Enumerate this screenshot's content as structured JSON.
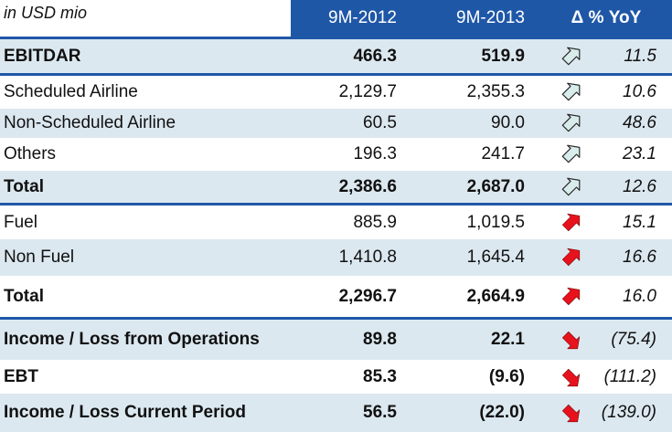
{
  "header": {
    "unit_label": "in USD mio",
    "col1": "9M-2012",
    "col2": "9M-2013",
    "col3": "Δ % YoY"
  },
  "rows": [
    {
      "label": "EBITDAR",
      "v1": "466.3",
      "v2": "519.9",
      "pct": "11.5",
      "arrow": "up-hollow",
      "bold": true
    },
    {
      "label": "Scheduled Airline",
      "v1": "2,129.7",
      "v2": "2,355.3",
      "pct": "10.6",
      "arrow": "up-hollow",
      "bold": false
    },
    {
      "label": "Non-Scheduled Airline",
      "v1": "60.5",
      "v2": "90.0",
      "pct": "48.6",
      "arrow": "up-hollow",
      "bold": false
    },
    {
      "label": "Others",
      "v1": "196.3",
      "v2": "241.7",
      "pct": "23.1",
      "arrow": "up-hollow",
      "bold": false
    },
    {
      "label": "Total",
      "v1": "2,386.6",
      "v2": "2,687.0",
      "pct": "12.6",
      "arrow": "up-hollow",
      "bold": true
    },
    {
      "label": "Fuel",
      "v1": "885.9",
      "v2": "1,019.5",
      "pct": "15.1",
      "arrow": "up-red",
      "bold": false
    },
    {
      "label": "Non Fuel",
      "v1": "1,410.8",
      "v2": "1,645.4",
      "pct": "16.6",
      "arrow": "up-red",
      "bold": false
    },
    {
      "label": "Total",
      "v1": "2,296.7",
      "v2": "2,664.9",
      "pct": "16.0",
      "arrow": "up-red",
      "bold": true
    },
    {
      "label": "Income / Loss from Operations",
      "v1": "89.8",
      "v2": "22.1",
      "pct": "(75.4)",
      "arrow": "down-red",
      "bold": true
    },
    {
      "label": "EBT",
      "v1": "85.3",
      "v2": "(9.6)",
      "pct": "(111.2)",
      "arrow": "down-red",
      "bold": true
    },
    {
      "label": "Income / Loss Current Period",
      "v1": "56.5",
      "v2": "(22.0)",
      "pct": "(139.0)",
      "arrow": "down-red",
      "bold": true
    }
  ],
  "colors": {
    "header_bg": "#1f57a7",
    "row_shade": "#dce8f0",
    "arrow_up_hollow_fill": "#d8ecec",
    "arrow_red": "#e8121c"
  }
}
